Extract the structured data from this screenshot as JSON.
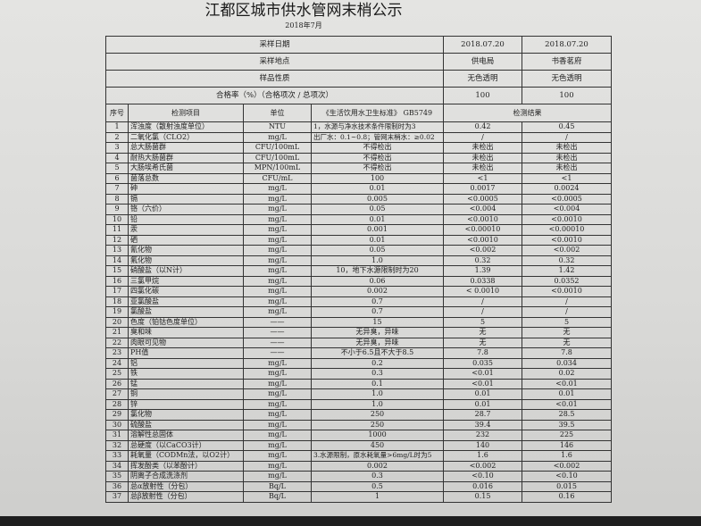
{
  "title": "江都区城市供水管网末梢公示",
  "subtitle": "2018年7月",
  "summary": [
    {
      "label": "采样日期",
      "v1": "2018.07.20",
      "v2": "2018.07.20"
    },
    {
      "label": "采样地点",
      "v1": "供电局",
      "v2": "书香茗府"
    },
    {
      "label": "样品性质",
      "v1": "无色透明",
      "v2": "无色透明"
    },
    {
      "label": "合格率（%）（合格项次 / 总项次）",
      "v1": "100",
      "v2": "100"
    }
  ],
  "columns": {
    "no": "序号",
    "item": "检测项目",
    "unit": "单位",
    "std": "《生活饮用水卫生标准》 GB5749",
    "result": "检测结果"
  },
  "rows": [
    {
      "no": "1",
      "item": "浑浊度（散射浊度单位）",
      "unit": "NTU",
      "std": "1，水源与净水技术条件限制时为3",
      "r1": "0.42",
      "r2": "0.45"
    },
    {
      "no": "2",
      "item": "二氧化氯（CLO2）",
      "unit": "mg/L",
      "std": "出厂水：0.1~0.8；管网末梢水：≥0.02",
      "r1": "/",
      "r2": "/"
    },
    {
      "no": "3",
      "item": "总大肠菌群",
      "unit": "CFU/100mL",
      "std": "不得检出",
      "r1": "未检出",
      "r2": "未检出"
    },
    {
      "no": "4",
      "item": "耐热大肠菌群",
      "unit": "CFU/100mL",
      "std": "不得检出",
      "r1": "未检出",
      "r2": "未检出"
    },
    {
      "no": "5",
      "item": "大肠埃希氏菌",
      "unit": "MPN/100mL",
      "std": "不得检出",
      "r1": "未检出",
      "r2": "未检出"
    },
    {
      "no": "6",
      "item": "菌落总数",
      "unit": "CFU/mL",
      "std": "100",
      "r1": "<1",
      "r2": "<1"
    },
    {
      "no": "7",
      "item": "砷",
      "unit": "mg/L",
      "std": "0.01",
      "r1": "0.0017",
      "r2": "0.0024"
    },
    {
      "no": "8",
      "item": "镉",
      "unit": "mg/L",
      "std": "0.005",
      "r1": "<0.0005",
      "r2": "<0.0005"
    },
    {
      "no": "9",
      "item": "铬（六价）",
      "unit": "mg/L",
      "std": "0.05",
      "r1": "<0.004",
      "r2": "<0.004"
    },
    {
      "no": "10",
      "item": "铅",
      "unit": "mg/L",
      "std": "0.01",
      "r1": "<0.0010",
      "r2": "<0.0010"
    },
    {
      "no": "11",
      "item": "汞",
      "unit": "mg/L",
      "std": "0.001",
      "r1": "<0.00010",
      "r2": "<0.00010"
    },
    {
      "no": "12",
      "item": "硒",
      "unit": "mg/L",
      "std": "0.01",
      "r1": "<0.0010",
      "r2": "<0.0010"
    },
    {
      "no": "13",
      "item": "氰化物",
      "unit": "mg/L",
      "std": "0.05",
      "r1": "<0.002",
      "r2": "<0.002"
    },
    {
      "no": "14",
      "item": "氟化物",
      "unit": "mg/L",
      "std": "1.0",
      "r1": "0.32",
      "r2": "0.32"
    },
    {
      "no": "15",
      "item": "硝酸盐（以N计）",
      "unit": "mg/L",
      "std": "10，地下水源限制时为20",
      "r1": "1.39",
      "r2": "1.42"
    },
    {
      "no": "16",
      "item": "三氯甲烷",
      "unit": "mg/L",
      "std": "0.06",
      "r1": "0.0338",
      "r2": "0.0352"
    },
    {
      "no": "17",
      "item": "四氯化碳",
      "unit": "mg/L",
      "std": "0.002",
      "r1": "< 0.0010",
      "r2": "<0.0010"
    },
    {
      "no": "18",
      "item": "亚氯酸盐",
      "unit": "mg/L",
      "std": "0.7",
      "r1": "/",
      "r2": "/"
    },
    {
      "no": "19",
      "item": "氯酸盐",
      "unit": "mg/L",
      "std": "0.7",
      "r1": "/",
      "r2": "/"
    },
    {
      "no": "20",
      "item": "色度（铂钴色度单位）",
      "unit": "——",
      "std": "15",
      "r1": "5",
      "r2": "5"
    },
    {
      "no": "21",
      "item": "臭和味",
      "unit": "——",
      "std": "无异臭，异味",
      "r1": "无",
      "r2": "无"
    },
    {
      "no": "22",
      "item": "肉眼可见物",
      "unit": "——",
      "std": "无异臭，异味",
      "r1": "无",
      "r2": "无"
    },
    {
      "no": "23",
      "item": "PH值",
      "unit": "——",
      "std": "不小于6.5且不大于8.5",
      "r1": "7.8",
      "r2": "7.8"
    },
    {
      "no": "24",
      "item": "铝",
      "unit": "mg/L",
      "std": "0.2",
      "r1": "0.035",
      "r2": "0.034"
    },
    {
      "no": "25",
      "item": "铁",
      "unit": "mg/L",
      "std": "0.3",
      "r1": "<0.01",
      "r2": "0.02"
    },
    {
      "no": "26",
      "item": "锰",
      "unit": "mg/L",
      "std": "0.1",
      "r1": "<0.01",
      "r2": "<0.01"
    },
    {
      "no": "27",
      "item": "铜",
      "unit": "mg/L",
      "std": "1.0",
      "r1": "0.01",
      "r2": "0.01"
    },
    {
      "no": "28",
      "item": "锌",
      "unit": "mg/L",
      "std": "1.0",
      "r1": "0.01",
      "r2": "<0.01"
    },
    {
      "no": "29",
      "item": "氯化物",
      "unit": "mg/L",
      "std": "250",
      "r1": "28.7",
      "r2": "28.5"
    },
    {
      "no": "30",
      "item": "硫酸盐",
      "unit": "mg/L",
      "std": "250",
      "r1": "39.4",
      "r2": "39.5"
    },
    {
      "no": "31",
      "item": "溶解性总固体",
      "unit": "mg/L",
      "std": "1000",
      "r1": "232",
      "r2": "225"
    },
    {
      "no": "32",
      "item": "总硬度（以CaCO3计）",
      "unit": "mg/L",
      "std": "450",
      "r1": "140",
      "r2": "146"
    },
    {
      "no": "33",
      "item": "耗氧量（CODMn法，以O2计）",
      "unit": "mg/L",
      "std": "3.水源限制，原水耗氧量>6mg/L时为5",
      "r1": "1.6",
      "r2": "1.6"
    },
    {
      "no": "34",
      "item": "挥发酚类（以苯酚计）",
      "unit": "mg/L",
      "std": "0.002",
      "r1": "<0.002",
      "r2": "<0.002"
    },
    {
      "no": "35",
      "item": "阴离子合成洗涤剂",
      "unit": "mg/L",
      "std": "0.3",
      "r1": "<0.10",
      "r2": "<0.10"
    },
    {
      "no": "36",
      "item": "总α放射性（分包）",
      "unit": "Bq/L",
      "std": "0.5",
      "r1": "0.016",
      "r2": "0.015"
    },
    {
      "no": "37",
      "item": "总β放射性（分包）",
      "unit": "Bq/L",
      "std": "1",
      "r1": "0.15",
      "r2": "0.16"
    }
  ]
}
